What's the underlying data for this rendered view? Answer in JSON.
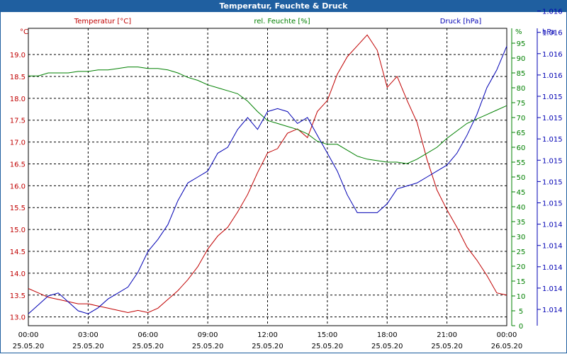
{
  "window": {
    "title": "Temperatur, Feuchte & Druck"
  },
  "colors": {
    "temperature": "#c00000",
    "humidity": "#008000",
    "pressure": "#0000b4",
    "titlebar": "#1f5fa0"
  },
  "chart_data": {
    "type": "line",
    "title": "Temperatur, Feuchte & Druck",
    "axes": {
      "left": {
        "unit": "°C",
        "ticks": [
          "13.0",
          "13.5",
          "14.0",
          "14.5",
          "15.0",
          "15.5",
          "16.0",
          "16.5",
          "17.0",
          "17.5",
          "18.0",
          "18.5",
          "19.0"
        ],
        "range": [
          12.8,
          19.6
        ]
      },
      "right1": {
        "unit": "%",
        "ticks": [
          "0",
          "5",
          "10",
          "15",
          "20",
          "25",
          "30",
          "35",
          "40",
          "45",
          "50",
          "55",
          "60",
          "65",
          "70",
          "75",
          "80",
          "85",
          "90",
          "95"
        ],
        "range": [
          0,
          100
        ]
      },
      "right2": {
        "unit": "hPa",
        "ticks": [
          "1.014",
          "1.014",
          "1.014",
          "1.014",
          "1.014",
          "1.015",
          "1.015",
          "1.015",
          "1.015",
          "1.015",
          "1.015",
          "1.016",
          "1.016",
          "1.016",
          "1.016"
        ],
        "range": [
          0,
          100
        ]
      },
      "x": {
        "ticks": [
          {
            "time": "00:00",
            "date": "25.05.20"
          },
          {
            "time": "03:00",
            "date": "25.05.20"
          },
          {
            "time": "06:00",
            "date": "25.05.20"
          },
          {
            "time": "09:00",
            "date": "25.05.20"
          },
          {
            "time": "12:00",
            "date": "25.05.20"
          },
          {
            "time": "15:00",
            "date": "25.05.20"
          },
          {
            "time": "18:00",
            "date": "25.05.20"
          },
          {
            "time": "21:00",
            "date": "25.05.20"
          },
          {
            "time": "00:00",
            "date": "26.05.20"
          }
        ],
        "range_hours": [
          0,
          24
        ]
      }
    },
    "grid": true,
    "series": [
      {
        "name": "Temperatur [°C]",
        "axis": "left",
        "color": "#c00000",
        "x": [
          0,
          0.5,
          1,
          1.5,
          2,
          2.5,
          3,
          3.5,
          4,
          4.5,
          5,
          5.5,
          6,
          6.5,
          7,
          7.5,
          8,
          8.5,
          9,
          9.5,
          10,
          10.5,
          11,
          11.5,
          12,
          12.5,
          13,
          13.5,
          14,
          14.5,
          15,
          15.5,
          16,
          16.5,
          17,
          17.5,
          18,
          18.5,
          19,
          19.5,
          20,
          20.5,
          21,
          21.5,
          22,
          22.5,
          23,
          23.5,
          24
        ],
        "values": [
          13.65,
          13.55,
          13.45,
          13.4,
          13.35,
          13.3,
          13.3,
          13.25,
          13.2,
          13.15,
          13.1,
          13.15,
          13.1,
          13.2,
          13.4,
          13.6,
          13.85,
          14.15,
          14.55,
          14.85,
          15.05,
          15.4,
          15.8,
          16.3,
          16.75,
          16.85,
          17.2,
          17.3,
          17.1,
          17.7,
          17.95,
          18.55,
          18.95,
          19.2,
          19.45,
          19.1,
          18.25,
          18.5,
          17.95,
          17.45,
          16.6,
          15.9,
          15.45,
          15.05,
          14.6,
          14.3,
          13.95,
          13.55,
          13.5
        ]
      },
      {
        "name": "rel. Feuchte [%]",
        "axis": "right1",
        "color": "#008000",
        "x": [
          0,
          0.5,
          1,
          1.5,
          2,
          2.5,
          3,
          3.5,
          4,
          4.5,
          5,
          5.5,
          6,
          6.5,
          7,
          7.5,
          8,
          8.5,
          9,
          9.5,
          10,
          10.5,
          11,
          11.5,
          12,
          12.5,
          13,
          13.5,
          14,
          14.5,
          15,
          15.5,
          16,
          16.5,
          17,
          17.5,
          18,
          18.5,
          19,
          19.5,
          20,
          20.5,
          21,
          21.5,
          22,
          22.5,
          23,
          23.5,
          24
        ],
        "values": [
          84,
          84,
          85,
          85,
          85,
          85.5,
          85.5,
          86,
          86,
          86.5,
          87,
          87,
          86.5,
          86.5,
          86,
          85,
          83.5,
          82.5,
          81,
          80,
          79,
          78,
          75.5,
          72,
          69,
          68,
          67,
          66,
          64.5,
          62,
          61,
          61,
          59,
          57,
          56,
          55.5,
          55,
          55,
          54.5,
          56,
          58,
          60,
          63,
          65.5,
          68,
          69.5,
          71,
          72.5,
          74
        ]
      },
      {
        "name": "Druck [hPa]",
        "axis": "right2",
        "color": "#0000b4",
        "x": [
          0,
          0.5,
          1,
          1.5,
          2,
          2.5,
          3,
          3.5,
          4,
          4.5,
          5,
          5.5,
          6,
          6.5,
          7,
          7.5,
          8,
          8.5,
          9,
          9.5,
          10,
          10.5,
          11,
          11.5,
          12,
          12.5,
          13,
          13.5,
          14,
          14.5,
          15,
          15.5,
          16,
          16.5,
          17,
          17.5,
          18,
          18.5,
          19,
          19.5,
          20,
          20.5,
          21,
          21.5,
          22,
          22.5,
          23,
          23.5,
          24
        ],
        "values": [
          4,
          7,
          10,
          11,
          8,
          5,
          4,
          6,
          9,
          11,
          13,
          18,
          25,
          29,
          34,
          42,
          48,
          50,
          52,
          58,
          60,
          66,
          70,
          66,
          72,
          73,
          72,
          68,
          70,
          64,
          58,
          52,
          44,
          38,
          38,
          38,
          41,
          46,
          47,
          48,
          50,
          52,
          54,
          58,
          64,
          71,
          80,
          86,
          94
        ]
      }
    ]
  }
}
